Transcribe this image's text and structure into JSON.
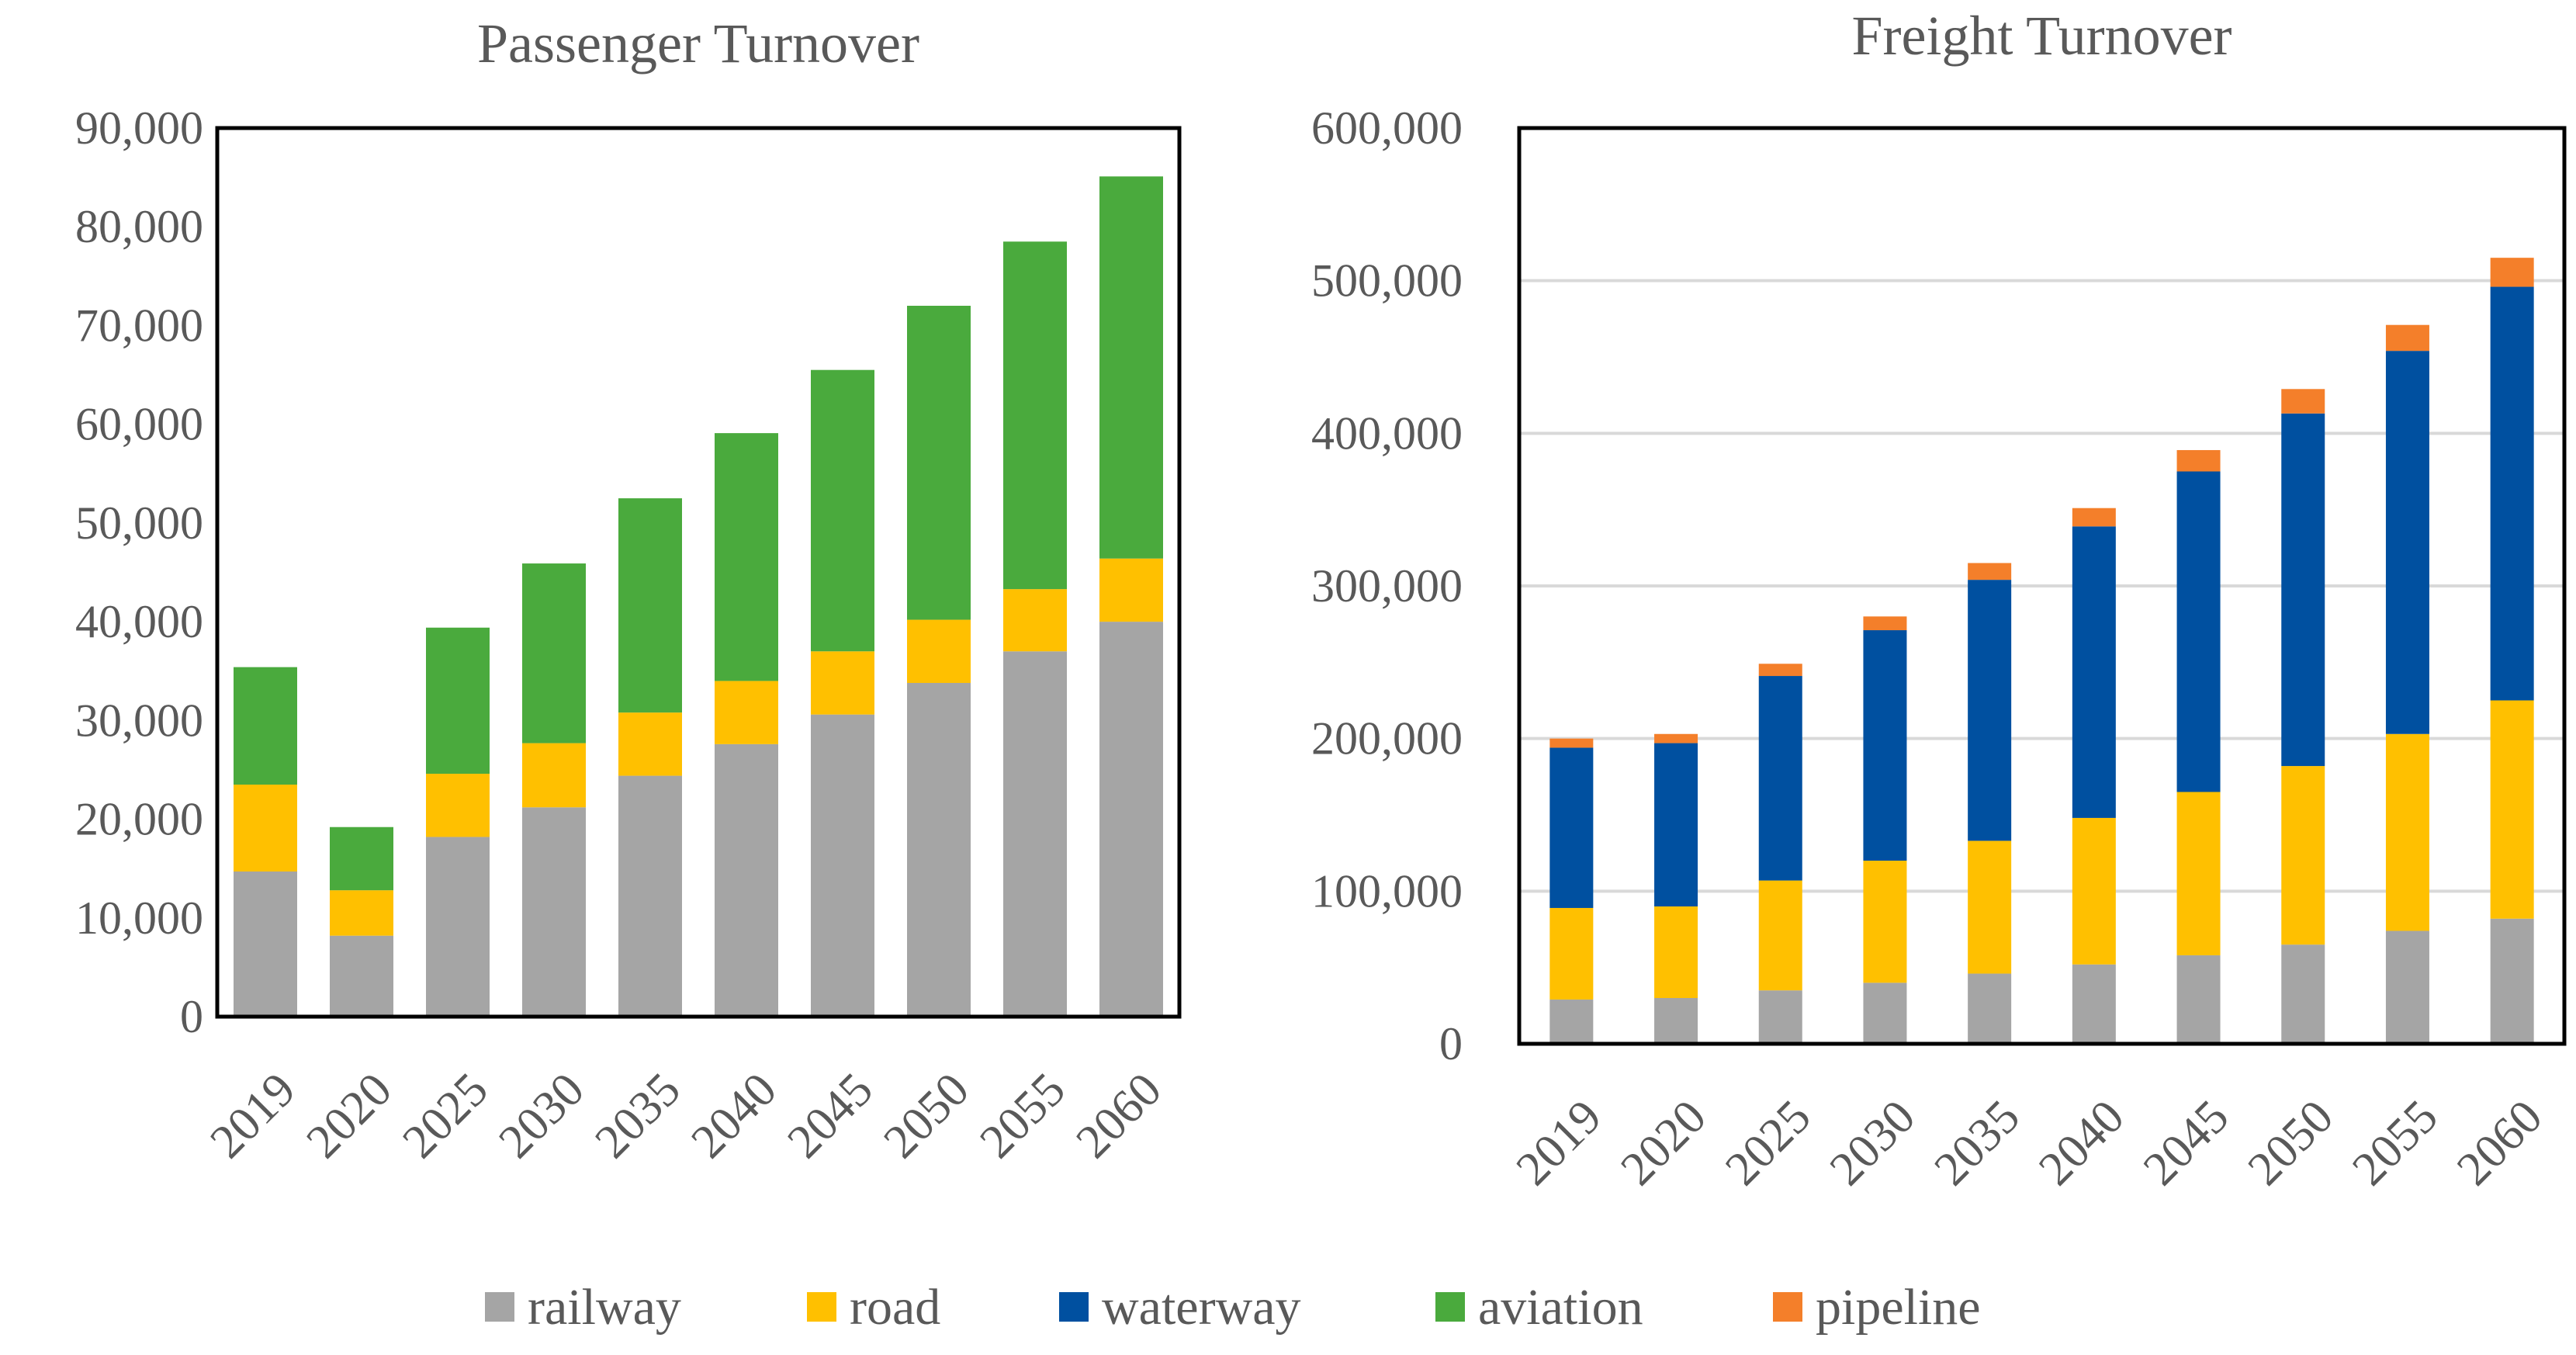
{
  "chart_data": [
    {
      "type": "bar",
      "stacked": true,
      "title": "Passenger Turnover",
      "xlabel": "",
      "ylabel": "",
      "ylim": [
        0,
        90000
      ],
      "yticks": [
        0,
        10000,
        20000,
        30000,
        40000,
        50000,
        60000,
        70000,
        80000,
        90000
      ],
      "ytick_labels": [
        "0",
        "10,000",
        "20,000",
        "30,000",
        "40,000",
        "50,000",
        "60,000",
        "70,000",
        "80,000",
        "90,000"
      ],
      "grid": false,
      "categories": [
        "2019",
        "2020",
        "2025",
        "2030",
        "2035",
        "2040",
        "2045",
        "2050",
        "2055",
        "2060"
      ],
      "series": [
        {
          "name": "railway",
          "color": "#A5A5A5",
          "values": [
            14700,
            8200,
            18200,
            21200,
            24400,
            27600,
            30600,
            33800,
            37000,
            40000
          ]
        },
        {
          "name": "road",
          "color": "#FFC000",
          "values": [
            8800,
            4600,
            6400,
            6500,
            6400,
            6400,
            6400,
            6400,
            6300,
            6400
          ]
        },
        {
          "name": "aviation",
          "color": "#4AAA3D",
          "values": [
            11900,
            6400,
            14800,
            18200,
            21700,
            25100,
            28500,
            31800,
            35200,
            38700
          ]
        }
      ]
    },
    {
      "type": "bar",
      "stacked": true,
      "title": "Freight Turnover",
      "xlabel": "",
      "ylabel": "",
      "ylim": [
        0,
        600000
      ],
      "yticks": [
        0,
        100000,
        200000,
        300000,
        400000,
        500000,
        600000
      ],
      "ytick_labels": [
        "0",
        "100,000",
        "200,000",
        "300,000",
        "400,000",
        "500,000",
        "600,000"
      ],
      "grid": true,
      "categories": [
        "2019",
        "2020",
        "2025",
        "2030",
        "2035",
        "2040",
        "2045",
        "2050",
        "2055",
        "2060"
      ],
      "series": [
        {
          "name": "railway",
          "color": "#A5A5A5",
          "values": [
            29000,
            30000,
            35000,
            40000,
            46000,
            52000,
            58000,
            65000,
            74000,
            82000
          ]
        },
        {
          "name": "road",
          "color": "#FFC000",
          "values": [
            60000,
            60000,
            72000,
            80000,
            87000,
            96000,
            107000,
            117000,
            129000,
            143000
          ]
        },
        {
          "name": "waterway",
          "color": "#0050A0",
          "values": [
            105000,
            107000,
            134000,
            151000,
            171000,
            191000,
            210000,
            231000,
            251000,
            271000
          ]
        },
        {
          "name": "pipeline",
          "color": "#F47F2A",
          "values": [
            6000,
            6000,
            8000,
            9000,
            11000,
            12000,
            14000,
            16000,
            17000,
            19000
          ]
        }
      ]
    }
  ],
  "legend": {
    "position": "bottom-center",
    "items": [
      {
        "label": "railway",
        "color": "#A5A5A5"
      },
      {
        "label": "road",
        "color": "#FFC000"
      },
      {
        "label": "waterway",
        "color": "#0050A0"
      },
      {
        "label": "aviation",
        "color": "#4AAA3D"
      },
      {
        "label": "pipeline",
        "color": "#F47F2A"
      }
    ]
  }
}
